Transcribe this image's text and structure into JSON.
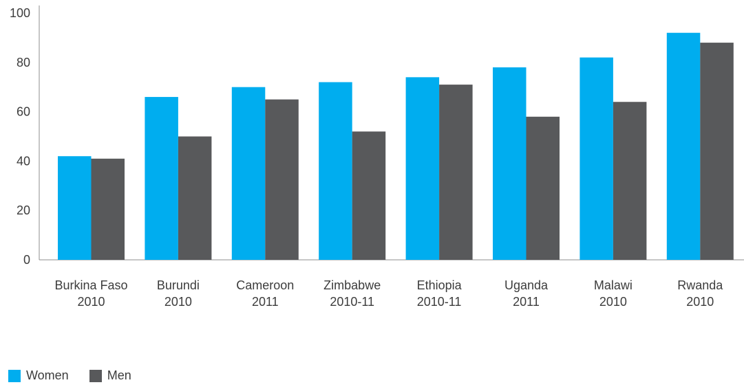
{
  "chart_data": {
    "type": "bar",
    "categories": [
      [
        "Burkina Faso",
        "2010"
      ],
      [
        "Burundi",
        "2010"
      ],
      [
        "Cameroon",
        "2011"
      ],
      [
        "Zimbabwe",
        "2010-11"
      ],
      [
        "Ethiopia",
        "2010-11"
      ],
      [
        "Uganda",
        "2011"
      ],
      [
        "Malawi",
        "2010"
      ],
      [
        "Rwanda",
        "2010"
      ]
    ],
    "series": [
      {
        "name": "Women",
        "color": "#00adef",
        "values": [
          42,
          66,
          70,
          72,
          74,
          78,
          82,
          92
        ]
      },
      {
        "name": "Men",
        "color": "#58595b",
        "values": [
          41,
          50,
          65,
          52,
          71,
          58,
          64,
          88
        ]
      }
    ],
    "ylim": [
      0,
      100
    ],
    "yticks": [
      "0",
      "20",
      "40",
      "60",
      "80",
      "100"
    ],
    "title": "",
    "xlabel": "",
    "ylabel": "",
    "legend_position": "bottom-left",
    "grid": false
  }
}
